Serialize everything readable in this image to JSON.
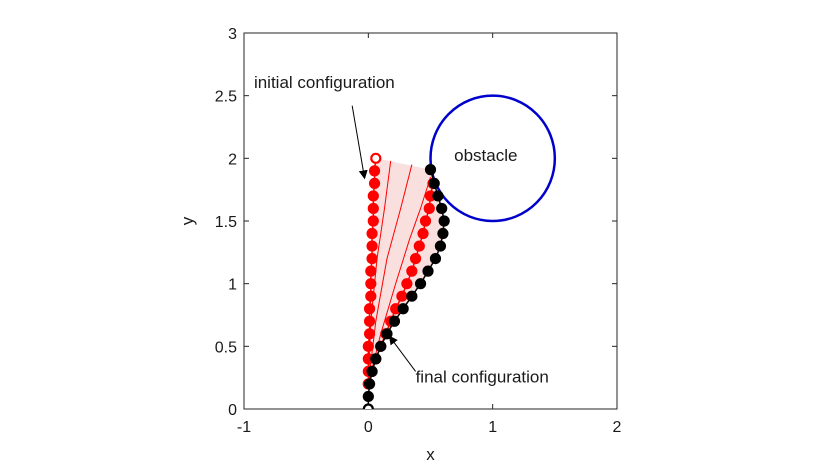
{
  "chart_data": {
    "type": "scatter",
    "title": "",
    "xlabel": "x",
    "ylabel": "y",
    "xlim": [
      -1,
      2
    ],
    "ylim": [
      0,
      3
    ],
    "xticks": [
      -1,
      0,
      1,
      2
    ],
    "yticks": [
      0,
      0.5,
      1,
      1.5,
      2,
      2.5,
      3
    ],
    "xtick_labels": [
      "-1",
      "0",
      "1",
      "2"
    ],
    "ytick_labels": [
      "0",
      "0.5",
      "1",
      "1.5",
      "2",
      "2.5",
      "3"
    ],
    "grid": false,
    "colors": {
      "initial": "#ff0000",
      "final": "#000000",
      "obstacle": "#0000cc",
      "intermediate": "#ff0000",
      "band": "#f4b8b8"
    },
    "series": [
      {
        "key": "initial",
        "points": [
          [
            0.0,
            0.2
          ],
          [
            0.0,
            0.3
          ],
          [
            0.0,
            0.4
          ],
          [
            0.0,
            0.5
          ],
          [
            0.01,
            0.6
          ],
          [
            0.01,
            0.7
          ],
          [
            0.01,
            0.8
          ],
          [
            0.02,
            0.9
          ],
          [
            0.02,
            1.0
          ],
          [
            0.02,
            1.1
          ],
          [
            0.03,
            1.2
          ],
          [
            0.03,
            1.3
          ],
          [
            0.03,
            1.4
          ],
          [
            0.04,
            1.5
          ],
          [
            0.04,
            1.6
          ],
          [
            0.04,
            1.7
          ],
          [
            0.05,
            1.8
          ],
          [
            0.05,
            1.9
          ],
          [
            0.06,
            2.0
          ]
        ]
      },
      {
        "key": "intermediate",
        "points": [
          [
            0.0,
            0.2
          ],
          [
            0.03,
            0.3
          ],
          [
            0.06,
            0.4
          ],
          [
            0.1,
            0.5
          ],
          [
            0.14,
            0.6
          ],
          [
            0.18,
            0.7
          ],
          [
            0.22,
            0.8
          ],
          [
            0.27,
            0.9
          ],
          [
            0.31,
            1.0
          ],
          [
            0.35,
            1.1
          ],
          [
            0.38,
            1.2
          ],
          [
            0.41,
            1.3
          ],
          [
            0.44,
            1.4
          ],
          [
            0.46,
            1.5
          ],
          [
            0.49,
            1.6
          ],
          [
            0.5,
            1.7
          ],
          [
            0.52,
            1.8
          ]
        ]
      },
      {
        "key": "final",
        "points": [
          [
            0.0,
            0.0
          ],
          [
            0.0,
            0.1
          ],
          [
            0.01,
            0.2
          ],
          [
            0.03,
            0.3
          ],
          [
            0.06,
            0.4
          ],
          [
            0.1,
            0.5
          ],
          [
            0.15,
            0.6
          ],
          [
            0.21,
            0.7
          ],
          [
            0.28,
            0.8
          ],
          [
            0.35,
            0.9
          ],
          [
            0.42,
            1.0
          ],
          [
            0.48,
            1.1
          ],
          [
            0.54,
            1.2
          ],
          [
            0.58,
            1.3
          ],
          [
            0.6,
            1.4
          ],
          [
            0.61,
            1.5
          ],
          [
            0.59,
            1.6
          ],
          [
            0.56,
            1.7
          ],
          [
            0.53,
            1.8
          ],
          [
            0.5,
            1.91
          ]
        ]
      }
    ],
    "intermediate_curves": [
      [
        [
          0.0,
          0.2
        ],
        [
          0.02,
          0.7
        ],
        [
          0.07,
          1.2
        ],
        [
          0.13,
          1.6
        ],
        [
          0.18,
          1.98
        ]
      ],
      [
        [
          0.0,
          0.2
        ],
        [
          0.06,
          0.7
        ],
        [
          0.15,
          1.2
        ],
        [
          0.26,
          1.6
        ],
        [
          0.35,
          1.95
        ]
      ],
      [
        [
          0.0,
          0.2
        ],
        [
          0.1,
          0.6
        ],
        [
          0.22,
          1.0
        ],
        [
          0.33,
          1.35
        ],
        [
          0.42,
          1.6
        ],
        [
          0.5,
          1.85
        ]
      ]
    ],
    "obstacle": {
      "cx": 1.0,
      "cy": 2.0,
      "r": 0.5
    },
    "annotations": [
      {
        "key": "initial",
        "text": "initial configuration",
        "at": [
          -0.92,
          2.56
        ],
        "arrow_tail": [
          -0.13,
          2.42
        ],
        "arrow_head": [
          -0.03,
          1.84
        ],
        "anchor": "start"
      },
      {
        "key": "obstacle",
        "text": "obstacle",
        "at": [
          0.69,
          1.98
        ],
        "anchor": "start"
      },
      {
        "key": "final",
        "text": "final configuration",
        "at": [
          0.38,
          0.21
        ],
        "arrow_tail": [
          0.38,
          0.3
        ],
        "arrow_head": [
          0.17,
          0.58
        ],
        "anchor": "start"
      }
    ]
  }
}
